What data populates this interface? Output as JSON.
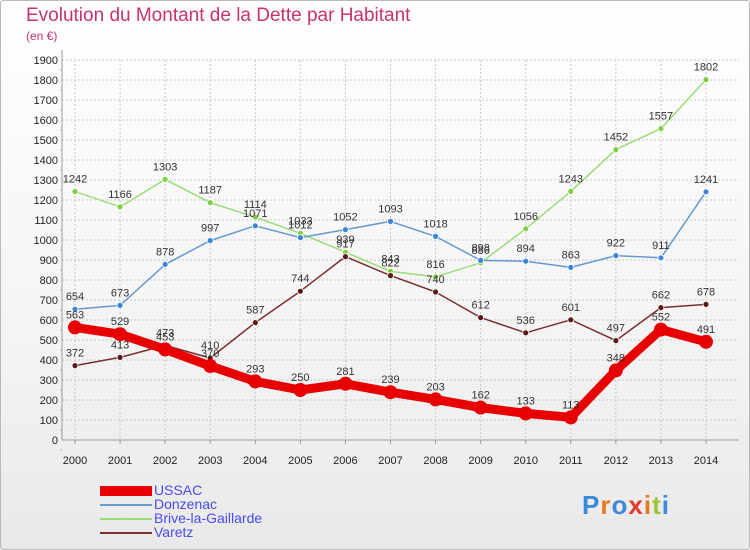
{
  "header": {
    "title": "Evolution du Montant de la Dette par Habitant",
    "unit": "(en €)"
  },
  "logo": {
    "text": "Proxiti",
    "letter_colors": [
      "#3f8ad8",
      "#e8781e",
      "#3f8ad8",
      "#e23b2e",
      "#e8781e",
      "#9cc43c",
      "#3f8ad8"
    ]
  },
  "colors": {
    "title": "#c8326e",
    "grid": "#c8c8c8",
    "axis_labels": "#222222",
    "legend_text": "#4a4af0"
  },
  "chart_data": {
    "type": "line",
    "title": "Evolution du Montant de la Dette par Habitant",
    "ylabel": "(en €)",
    "x": [
      "2000",
      "2001",
      "2002",
      "2003",
      "2004",
      "2005",
      "2006",
      "2007",
      "2008",
      "2009",
      "2010",
      "2011",
      "2012",
      "2013",
      "2014"
    ],
    "ylim": [
      0,
      1900
    ],
    "ytick_step": 100,
    "grid": true,
    "legend_position": "bottom-left",
    "series": [
      {
        "name": "USSAC",
        "color": "#e80000",
        "marker": "#e80000",
        "values": [
          563,
          529,
          453,
          370,
          293,
          250,
          281,
          239,
          203,
          162,
          133,
          113,
          348,
          552,
          491
        ]
      },
      {
        "name": "Donzenac",
        "color": "#6699cc",
        "marker": "#3a86d6",
        "values": [
          654,
          673,
          878,
          997,
          1071,
          1012,
          1052,
          1093,
          1018,
          898,
          894,
          863,
          922,
          911,
          1241
        ]
      },
      {
        "name": "Brive-la-Gaillarde",
        "color": "#99dd77",
        "marker": "#7ed040",
        "values": [
          1242,
          1166,
          1303,
          1187,
          1114,
          1033,
          939,
          843,
          816,
          886,
          1056,
          1243,
          1452,
          1557,
          1802
        ]
      },
      {
        "name": "Varetz",
        "color": "#7a2e2e",
        "marker": "#5a1818",
        "values": [
          372,
          413,
          473,
          410,
          587,
          744,
          917,
          822,
          740,
          612,
          536,
          601,
          497,
          662,
          678
        ]
      }
    ]
  }
}
